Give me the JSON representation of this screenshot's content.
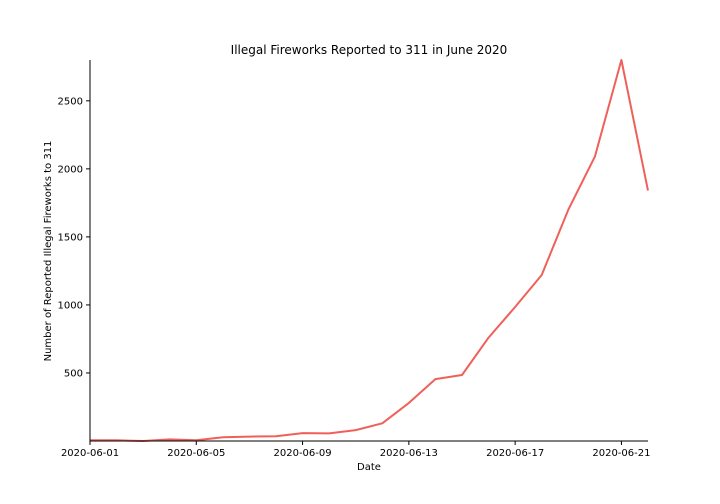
{
  "chart_data": {
    "type": "line",
    "title": "Illegal Fireworks Reported to 311 in June 2020",
    "xlabel": "Date",
    "ylabel": "Number of Reported Illegal Fireworks to 311",
    "x_ticks": [
      "2020-06-01",
      "2020-06-05",
      "2020-06-09",
      "2020-06-13",
      "2020-06-17",
      "2020-06-21"
    ],
    "y_ticks": [
      500,
      1000,
      1500,
      2000,
      2500
    ],
    "ylim": [
      0,
      2800
    ],
    "xlim": [
      "2020-06-01",
      "2020-06-22"
    ],
    "grid": false,
    "line_color": "#f0605a",
    "x": [
      "2020-06-01",
      "2020-06-02",
      "2020-06-03",
      "2020-06-04",
      "2020-06-05",
      "2020-06-06",
      "2020-06-07",
      "2020-06-08",
      "2020-06-09",
      "2020-06-10",
      "2020-06-11",
      "2020-06-12",
      "2020-06-13",
      "2020-06-14",
      "2020-06-15",
      "2020-06-16",
      "2020-06-17",
      "2020-06-18",
      "2020-06-19",
      "2020-06-20",
      "2020-06-21",
      "2020-06-22"
    ],
    "values": [
      5,
      5,
      0,
      12,
      5,
      28,
      32,
      35,
      58,
      56,
      80,
      130,
      280,
      455,
      485,
      760,
      985,
      1220,
      1700,
      2090,
      2800,
      1840
    ]
  }
}
